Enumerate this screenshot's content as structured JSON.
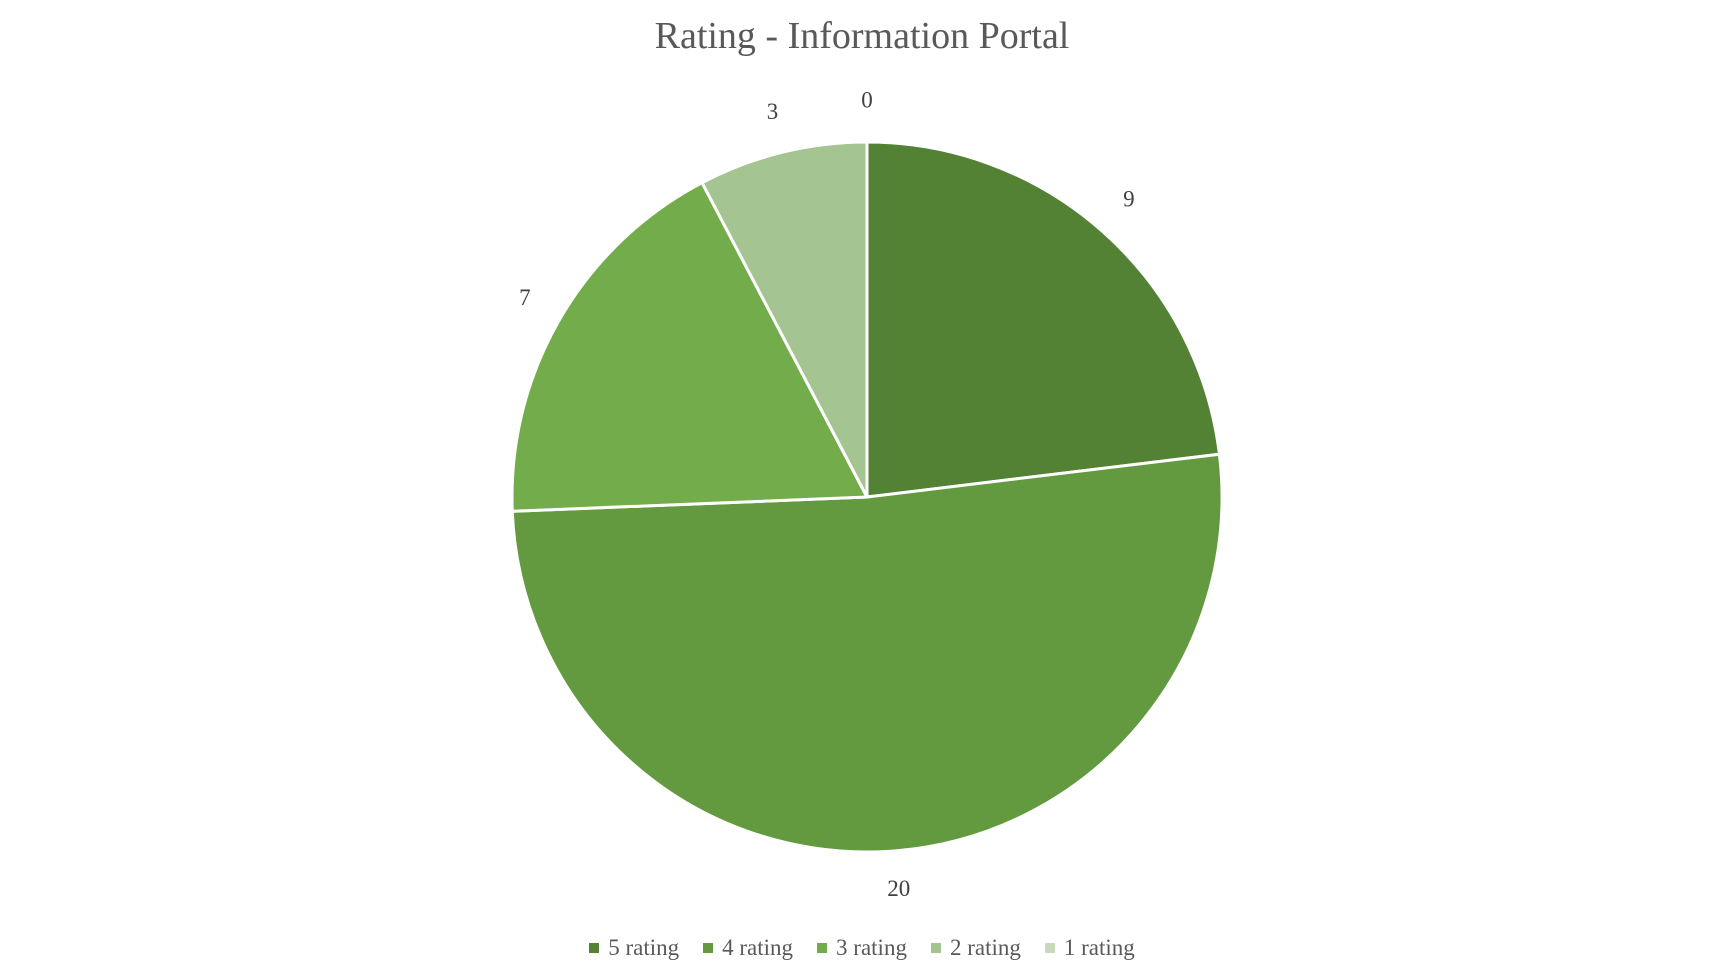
{
  "chart_data": {
    "type": "pie",
    "title": "Rating - Information Portal",
    "categories": [
      "5 rating",
      "4 rating",
      "3 rating",
      "2 rating",
      "1 rating"
    ],
    "values": [
      9,
      20,
      7,
      3,
      0
    ],
    "colors": [
      "#548235",
      "#639A3F",
      "#72AC4B",
      "#A4C491",
      "#C6D9BA"
    ],
    "start_angle_deg": 0,
    "direction": "clockwise",
    "legend_position": "bottom",
    "data_labels": true
  }
}
